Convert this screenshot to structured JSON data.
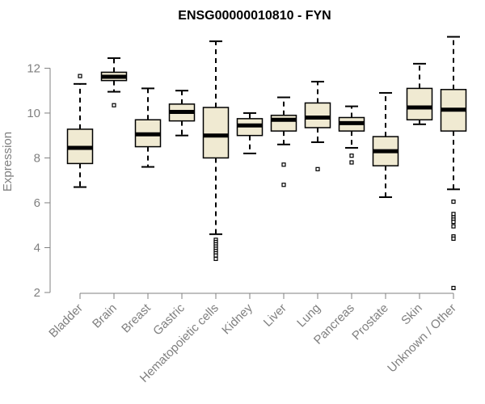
{
  "chart_data": {
    "type": "boxplot",
    "title": "ENSG00000010810 - FYN",
    "xlabel": "",
    "ylabel": "Expression",
    "ylim": [
      2,
      13.6
    ],
    "yticks": [
      2,
      4,
      6,
      8,
      10,
      12
    ],
    "grid": false,
    "box_fill": "#f0ead2",
    "box_stroke": "#000000",
    "axis_color": "#808080",
    "categories": [
      "Bladder",
      "Brain",
      "Breast",
      "Gastric",
      "Hematopoietic cells",
      "Kidney",
      "Liver",
      "Lung",
      "Pancreas",
      "Prostate",
      "Skin",
      "Unknown / Other"
    ],
    "boxes": [
      {
        "min": 6.7,
        "q1": 7.75,
        "median": 8.45,
        "q3": 9.28,
        "max": 11.3,
        "outliers": [
          11.65
        ]
      },
      {
        "min": 10.95,
        "q1": 11.45,
        "median": 11.62,
        "q3": 11.82,
        "max": 12.45,
        "outliers": [
          10.35
        ]
      },
      {
        "min": 7.6,
        "q1": 8.5,
        "median": 9.05,
        "q3": 9.7,
        "max": 11.1,
        "outliers": []
      },
      {
        "min": 9.0,
        "q1": 9.65,
        "median": 10.05,
        "q3": 10.4,
        "max": 11.0,
        "outliers": []
      },
      {
        "min": 4.6,
        "q1": 8.0,
        "median": 9.0,
        "q3": 10.25,
        "max": 13.2,
        "outliers": [
          4.35,
          4.25,
          4.15,
          4.05,
          3.95,
          3.85,
          3.75,
          3.65,
          3.5
        ]
      },
      {
        "min": 8.2,
        "q1": 9.0,
        "median": 9.45,
        "q3": 9.75,
        "max": 10.0,
        "outliers": []
      },
      {
        "min": 8.6,
        "q1": 9.2,
        "median": 9.7,
        "q3": 9.9,
        "max": 10.7,
        "outliers": [
          7.7,
          6.8
        ]
      },
      {
        "min": 8.7,
        "q1": 9.35,
        "median": 9.8,
        "q3": 10.45,
        "max": 11.4,
        "outliers": [
          7.5
        ]
      },
      {
        "min": 8.45,
        "q1": 9.2,
        "median": 9.55,
        "q3": 9.8,
        "max": 10.3,
        "outliers": [
          8.1,
          7.8
        ]
      },
      {
        "min": 6.25,
        "q1": 7.65,
        "median": 8.3,
        "q3": 8.95,
        "max": 10.9,
        "outliers": []
      },
      {
        "min": 9.5,
        "q1": 9.7,
        "median": 10.25,
        "q3": 11.1,
        "max": 12.2,
        "outliers": []
      },
      {
        "min": 6.6,
        "q1": 9.2,
        "median": 10.15,
        "q3": 11.05,
        "max": 13.4,
        "outliers": [
          6.05,
          5.5,
          5.35,
          5.25,
          5.15,
          4.95,
          4.5,
          4.4,
          2.2
        ]
      }
    ]
  }
}
